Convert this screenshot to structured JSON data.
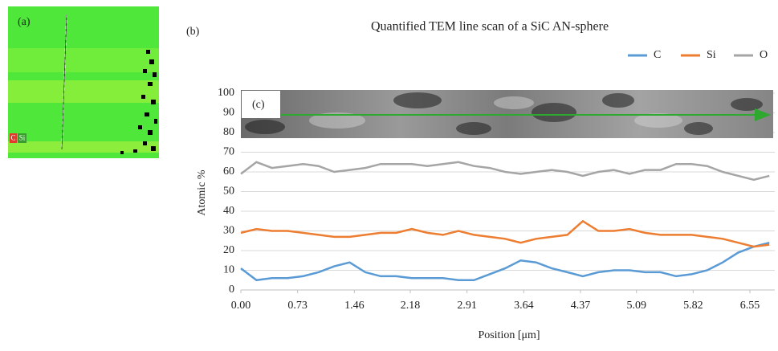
{
  "panel_labels": {
    "a": "(a)",
    "b": "(b)",
    "c": "(c)"
  },
  "map_legend": [
    "C",
    "Si"
  ],
  "chart_data": {
    "type": "line",
    "title": "Quantified TEM line scan of a SiC AN-sphere",
    "x_label": "Position [μm]",
    "y_label": "Atomic %",
    "x": [
      0,
      0.2,
      0.4,
      0.6,
      0.8,
      1.0,
      1.2,
      1.4,
      1.6,
      1.8,
      2.0,
      2.2,
      2.4,
      2.6,
      2.8,
      3.0,
      3.2,
      3.4,
      3.6,
      3.8,
      4.0,
      4.2,
      4.4,
      4.6,
      4.8,
      5.0,
      5.2,
      5.4,
      5.6,
      5.8,
      6.0,
      6.2,
      6.4,
      6.6,
      6.8
    ],
    "series": [
      {
        "name": "C",
        "color": "#5b9bd5",
        "values": [
          11,
          5,
          6,
          6,
          7,
          9,
          12,
          14,
          9,
          7,
          7,
          6,
          6,
          6,
          5,
          5,
          8,
          11,
          15,
          14,
          11,
          9,
          7,
          9,
          10,
          10,
          9,
          9,
          7,
          8,
          10,
          14,
          19,
          22,
          24
        ]
      },
      {
        "name": "Si",
        "color": "#ed7d31",
        "values": [
          29,
          31,
          30,
          30,
          29,
          28,
          27,
          27,
          28,
          29,
          29,
          31,
          29,
          28,
          30,
          28,
          27,
          26,
          24,
          26,
          27,
          28,
          35,
          30,
          30,
          31,
          29,
          28,
          28,
          28,
          27,
          26,
          24,
          22,
          23
        ]
      },
      {
        "name": "O",
        "color": "#a5a5a5",
        "values": [
          59,
          65,
          62,
          63,
          64,
          63,
          60,
          61,
          62,
          64,
          64,
          64,
          63,
          64,
          65,
          63,
          62,
          60,
          59,
          60,
          61,
          60,
          58,
          60,
          61,
          59,
          61,
          61,
          64,
          64,
          63,
          60,
          58,
          56,
          58
        ]
      }
    ],
    "xlim": [
      0,
      6.87
    ],
    "xticks": [
      {
        "value": 0,
        "label": "0.00"
      },
      0.73,
      1.46,
      2.18,
      2.91,
      3.64,
      4.37,
      5.09,
      5.82,
      6.55
    ],
    "ylim": [
      0,
      100
    ],
    "yticks": [
      0,
      10,
      20,
      30,
      40,
      50,
      60,
      70,
      80,
      90,
      100
    ],
    "grid": true
  }
}
